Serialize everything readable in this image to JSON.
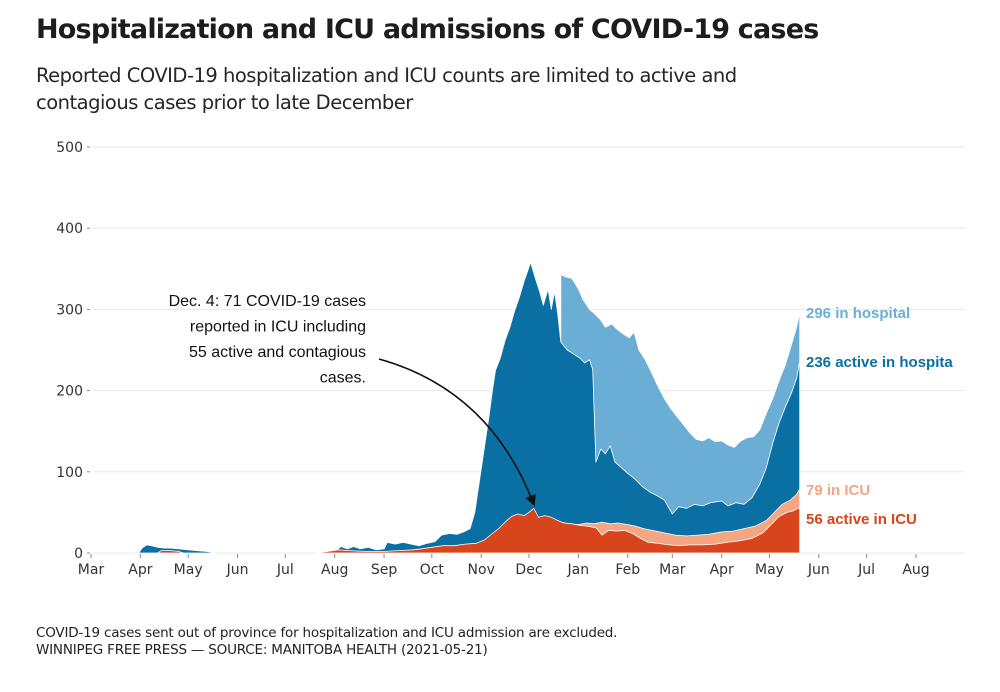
{
  "title": "Hospitalization and ICU admissions of COVID-19 cases",
  "subtitle": [
    "Reported COVID-19 hospitalization and ICU counts are limited to active and",
    "contagious cases prior to late December"
  ],
  "footer": [
    "COVID-19 cases sent out of province for hospitalization and ICU admission are excluded.",
    "WINNIPEG FREE PRESS — SOURCE: MANITOBA HEALTH (2021-05-21)"
  ],
  "chart_data": {
    "type": "area",
    "title": "Hospitalization and ICU admissions of COVID-19 cases",
    "xlabel": "",
    "ylabel": "",
    "ylim": [
      0,
      500
    ],
    "xlim": [
      "2020-03-01",
      "2021-08-01"
    ],
    "grid": true,
    "y_ticks": [
      0,
      100,
      200,
      300,
      400,
      500
    ],
    "x_ticks": [
      {
        "date": "2020-03-01",
        "label": "Mar"
      },
      {
        "date": "2020-04-01",
        "label": "Apr"
      },
      {
        "date": "2020-05-01",
        "label": "May"
      },
      {
        "date": "2020-06-01",
        "label": "Jun"
      },
      {
        "date": "2020-07-01",
        "label": "Jul"
      },
      {
        "date": "2020-08-01",
        "label": "Aug"
      },
      {
        "date": "2020-09-01",
        "label": "Sep"
      },
      {
        "date": "2020-10-01",
        "label": "Oct"
      },
      {
        "date": "2020-11-01",
        "label": "Nov"
      },
      {
        "date": "2020-12-01",
        "label": "Dec"
      },
      {
        "date": "2021-01-01",
        "label": "Jan"
      },
      {
        "date": "2021-02-01",
        "label": "Feb"
      },
      {
        "date": "2021-03-01",
        "label": "Mar"
      },
      {
        "date": "2021-04-01",
        "label": "Apr"
      },
      {
        "date": "2021-05-01",
        "label": "May"
      },
      {
        "date": "2021-06-01",
        "label": "Jun"
      },
      {
        "date": "2021-07-01",
        "label": "Jul"
      },
      {
        "date": "2021-08-01",
        "label": "Aug"
      }
    ],
    "series": [
      {
        "name": "In hospital (total)",
        "color": "#6aaed6",
        "end_label": "296 in hospital",
        "points": [
          [
            "2020-12-21",
            343
          ],
          [
            "2020-12-24",
            340
          ],
          [
            "2020-12-28",
            338
          ],
          [
            "2021-01-01",
            325
          ],
          [
            "2021-01-04",
            312
          ],
          [
            "2021-01-08",
            300
          ],
          [
            "2021-01-11",
            295
          ],
          [
            "2021-01-15",
            287
          ],
          [
            "2021-01-18",
            278
          ],
          [
            "2021-01-22",
            282
          ],
          [
            "2021-01-25",
            276
          ],
          [
            "2021-01-29",
            270
          ],
          [
            "2021-02-02",
            265
          ],
          [
            "2021-02-05",
            272
          ],
          [
            "2021-02-08",
            250
          ],
          [
            "2021-02-12",
            238
          ],
          [
            "2021-02-16",
            222
          ],
          [
            "2021-02-20",
            205
          ],
          [
            "2021-02-24",
            190
          ],
          [
            "2021-02-28",
            178
          ],
          [
            "2021-03-04",
            168
          ],
          [
            "2021-03-08",
            158
          ],
          [
            "2021-03-12",
            148
          ],
          [
            "2021-03-16",
            140
          ],
          [
            "2021-03-20",
            138
          ],
          [
            "2021-03-24",
            142
          ],
          [
            "2021-03-28",
            137
          ],
          [
            "2021-04-01",
            138
          ],
          [
            "2021-04-05",
            133
          ],
          [
            "2021-04-09",
            130
          ],
          [
            "2021-04-13",
            138
          ],
          [
            "2021-04-17",
            142
          ],
          [
            "2021-04-21",
            143
          ],
          [
            "2021-04-25",
            152
          ],
          [
            "2021-04-29",
            172
          ],
          [
            "2021-05-03",
            190
          ],
          [
            "2021-05-07",
            212
          ],
          [
            "2021-05-11",
            232
          ],
          [
            "2021-05-15",
            258
          ],
          [
            "2021-05-18",
            278
          ],
          [
            "2021-05-20",
            296
          ]
        ]
      },
      {
        "name": "Active in hospital",
        "color": "#0a6fa3",
        "end_label": "236 active in hospita",
        "points": [
          [
            "2020-03-31",
            0
          ],
          [
            "2020-04-02",
            6
          ],
          [
            "2020-04-05",
            10
          ],
          [
            "2020-04-08",
            9
          ],
          [
            "2020-04-12",
            7
          ],
          [
            "2020-04-16",
            6
          ],
          [
            "2020-04-20",
            6
          ],
          [
            "2020-04-25",
            5
          ],
          [
            "2020-05-01",
            4
          ],
          [
            "2020-05-06",
            3
          ],
          [
            "2020-05-12",
            2
          ],
          [
            "2020-05-16",
            1
          ],
          [
            "2020-05-18",
            0
          ],
          [
            "2020-07-20",
            0
          ],
          [
            "2020-07-28",
            2
          ],
          [
            "2020-08-02",
            3
          ],
          [
            "2020-08-05",
            8
          ],
          [
            "2020-08-09",
            5
          ],
          [
            "2020-08-13",
            8
          ],
          [
            "2020-08-17",
            5
          ],
          [
            "2020-08-22",
            7
          ],
          [
            "2020-08-27",
            4
          ],
          [
            "2020-09-01",
            5
          ],
          [
            "2020-09-03",
            13
          ],
          [
            "2020-09-08",
            11
          ],
          [
            "2020-09-13",
            13
          ],
          [
            "2020-09-18",
            11
          ],
          [
            "2020-09-23",
            9
          ],
          [
            "2020-09-28",
            12
          ],
          [
            "2020-10-03",
            14
          ],
          [
            "2020-10-07",
            22
          ],
          [
            "2020-10-12",
            24
          ],
          [
            "2020-10-17",
            23
          ],
          [
            "2020-10-21",
            26
          ],
          [
            "2020-10-25",
            30
          ],
          [
            "2020-10-28",
            50
          ],
          [
            "2020-10-31",
            90
          ],
          [
            "2020-11-03",
            130
          ],
          [
            "2020-11-06",
            170
          ],
          [
            "2020-11-08",
            200
          ],
          [
            "2020-11-10",
            225
          ],
          [
            "2020-11-13",
            240
          ],
          [
            "2020-11-16",
            262
          ],
          [
            "2020-11-19",
            278
          ],
          [
            "2020-11-22",
            298
          ],
          [
            "2020-11-25",
            315
          ],
          [
            "2020-11-28",
            335
          ],
          [
            "2020-12-01",
            352
          ],
          [
            "2020-12-02",
            358
          ],
          [
            "2020-12-05",
            338
          ],
          [
            "2020-12-08",
            320
          ],
          [
            "2020-12-10",
            305
          ],
          [
            "2020-12-13",
            325
          ],
          [
            "2020-12-15",
            300
          ],
          [
            "2020-12-17",
            322
          ],
          [
            "2020-12-19",
            295
          ],
          [
            "2020-12-21",
            260
          ],
          [
            "2020-12-25",
            250
          ],
          [
            "2020-12-29",
            245
          ],
          [
            "2021-01-02",
            240
          ],
          [
            "2021-01-05",
            234
          ],
          [
            "2021-01-08",
            238
          ],
          [
            "2021-01-10",
            226
          ],
          [
            "2021-01-12",
            112
          ],
          [
            "2021-01-15",
            128
          ],
          [
            "2021-01-18",
            122
          ],
          [
            "2021-01-21",
            132
          ],
          [
            "2021-01-24",
            112
          ],
          [
            "2021-01-28",
            105
          ],
          [
            "2021-02-01",
            98
          ],
          [
            "2021-02-05",
            92
          ],
          [
            "2021-02-10",
            82
          ],
          [
            "2021-02-15",
            75
          ],
          [
            "2021-02-20",
            70
          ],
          [
            "2021-02-24",
            65
          ],
          [
            "2021-03-01",
            48
          ],
          [
            "2021-03-05",
            57
          ],
          [
            "2021-03-10",
            55
          ],
          [
            "2021-03-15",
            60
          ],
          [
            "2021-03-20",
            58
          ],
          [
            "2021-03-25",
            62
          ],
          [
            "2021-04-01",
            64
          ],
          [
            "2021-04-05",
            58
          ],
          [
            "2021-04-10",
            62
          ],
          [
            "2021-04-15",
            60
          ],
          [
            "2021-04-20",
            68
          ],
          [
            "2021-04-25",
            85
          ],
          [
            "2021-04-29",
            105
          ],
          [
            "2021-05-03",
            135
          ],
          [
            "2021-05-07",
            160
          ],
          [
            "2021-05-11",
            180
          ],
          [
            "2021-05-15",
            198
          ],
          [
            "2021-05-18",
            215
          ],
          [
            "2021-05-20",
            236
          ]
        ]
      },
      {
        "name": "In ICU (total)",
        "color": "#f4a582",
        "end_label": "79 in ICU",
        "points": [
          [
            "2020-12-21",
            38
          ],
          [
            "2020-12-26",
            36
          ],
          [
            "2021-01-01",
            35
          ],
          [
            "2021-01-06",
            37
          ],
          [
            "2021-01-11",
            36
          ],
          [
            "2021-01-16",
            38
          ],
          [
            "2021-01-21",
            36
          ],
          [
            "2021-01-26",
            37
          ],
          [
            "2021-02-01",
            35
          ],
          [
            "2021-02-06",
            33
          ],
          [
            "2021-02-11",
            30
          ],
          [
            "2021-02-16",
            28
          ],
          [
            "2021-02-21",
            26
          ],
          [
            "2021-02-26",
            24
          ],
          [
            "2021-03-03",
            22
          ],
          [
            "2021-03-10",
            21
          ],
          [
            "2021-03-17",
            22
          ],
          [
            "2021-03-24",
            23
          ],
          [
            "2021-04-01",
            26
          ],
          [
            "2021-04-08",
            27
          ],
          [
            "2021-04-15",
            30
          ],
          [
            "2021-04-22",
            33
          ],
          [
            "2021-04-29",
            40
          ],
          [
            "2021-05-04",
            50
          ],
          [
            "2021-05-09",
            60
          ],
          [
            "2021-05-14",
            65
          ],
          [
            "2021-05-18",
            72
          ],
          [
            "2021-05-20",
            79
          ]
        ]
      },
      {
        "name": "Active in ICU",
        "color": "#d8441c",
        "end_label": "56 active in ICU",
        "points": [
          [
            "2020-04-12",
            0
          ],
          [
            "2020-04-14",
            3
          ],
          [
            "2020-04-20",
            3
          ],
          [
            "2020-04-25",
            2
          ],
          [
            "2020-04-28",
            0
          ],
          [
            "2020-07-20",
            0
          ],
          [
            "2020-07-28",
            2
          ],
          [
            "2020-08-03",
            4
          ],
          [
            "2020-08-10",
            3
          ],
          [
            "2020-08-20",
            2
          ],
          [
            "2020-09-01",
            2
          ],
          [
            "2020-09-10",
            3
          ],
          [
            "2020-09-20",
            4
          ],
          [
            "2020-10-01",
            7
          ],
          [
            "2020-10-08",
            9
          ],
          [
            "2020-10-15",
            9
          ],
          [
            "2020-10-22",
            11
          ],
          [
            "2020-10-29",
            12
          ],
          [
            "2020-11-03",
            16
          ],
          [
            "2020-11-08",
            24
          ],
          [
            "2020-11-12",
            30
          ],
          [
            "2020-11-16",
            38
          ],
          [
            "2020-11-20",
            45
          ],
          [
            "2020-11-24",
            48
          ],
          [
            "2020-11-28",
            46
          ],
          [
            "2020-12-01",
            50
          ],
          [
            "2020-12-04",
            55
          ],
          [
            "2020-12-07",
            44
          ],
          [
            "2020-12-11",
            46
          ],
          [
            "2020-12-15",
            44
          ],
          [
            "2020-12-19",
            40
          ],
          [
            "2020-12-23",
            37
          ],
          [
            "2020-12-28",
            36
          ],
          [
            "2021-01-02",
            34
          ],
          [
            "2021-01-07",
            33
          ],
          [
            "2021-01-12",
            31
          ],
          [
            "2021-01-16",
            22
          ],
          [
            "2021-01-20",
            28
          ],
          [
            "2021-01-25",
            27
          ],
          [
            "2021-01-30",
            28
          ],
          [
            "2021-02-04",
            24
          ],
          [
            "2021-02-09",
            18
          ],
          [
            "2021-02-14",
            13
          ],
          [
            "2021-02-20",
            12
          ],
          [
            "2021-02-27",
            10
          ],
          [
            "2021-03-05",
            9
          ],
          [
            "2021-03-12",
            10
          ],
          [
            "2021-03-20",
            10
          ],
          [
            "2021-03-28",
            11
          ],
          [
            "2021-04-04",
            13
          ],
          [
            "2021-04-12",
            15
          ],
          [
            "2021-04-20",
            18
          ],
          [
            "2021-04-27",
            25
          ],
          [
            "2021-05-02",
            35
          ],
          [
            "2021-05-07",
            45
          ],
          [
            "2021-05-12",
            50
          ],
          [
            "2021-05-16",
            52
          ],
          [
            "2021-05-20",
            56
          ]
        ]
      }
    ],
    "annotation": {
      "lines": [
        "Dec. 4: 71 COVID-19 cases",
        "reported in ICU including",
        "55 active and contagious",
        "cases."
      ],
      "target_date": "2020-12-04",
      "target_value": 55
    },
    "end_label_colors": {
      "hospital_total": "#6aaed6",
      "hospital_active": "#0a6fa3",
      "icu_total": "#f4a582",
      "icu_active": "#d8441c"
    }
  }
}
